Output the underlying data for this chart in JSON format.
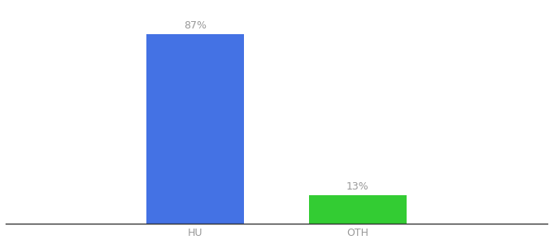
{
  "categories": [
    "HU",
    "OTH"
  ],
  "values": [
    87,
    13
  ],
  "bar_colors": [
    "#4472e4",
    "#33cc33"
  ],
  "label_texts": [
    "87%",
    "13%"
  ],
  "background_color": "#ffffff",
  "text_color": "#999999",
  "label_fontsize": 9,
  "tick_fontsize": 9,
  "ylim": [
    0,
    100
  ],
  "bar_width": 0.18,
  "x_positions": [
    0.35,
    0.65
  ],
  "xlim": [
    0.0,
    1.0
  ],
  "spine_color": "#333333"
}
